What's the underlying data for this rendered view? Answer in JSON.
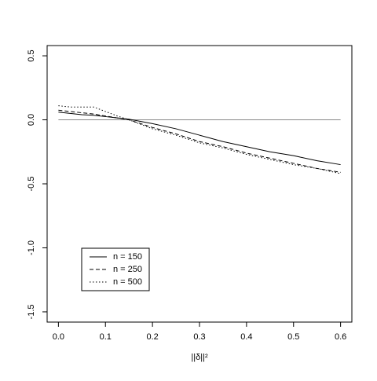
{
  "chart_data": {
    "type": "line",
    "x_label": "||δ||²",
    "x": [
      0,
      0.025,
      0.05,
      0.075,
      0.1,
      0.125,
      0.15,
      0.2,
      0.25,
      0.3,
      0.35,
      0.4,
      0.45,
      0.5,
      0.55,
      0.6
    ],
    "series": [
      {
        "name": "n = 150",
        "color": "#000000",
        "dash": "solid",
        "values": [
          0.06,
          0.05,
          0.04,
          0.035,
          0.025,
          0.015,
          0.005,
          -0.03,
          -0.07,
          -0.12,
          -0.17,
          -0.21,
          -0.25,
          -0.28,
          -0.32,
          -0.35
        ]
      },
      {
        "name": "n = 250",
        "color": "#000000",
        "dash": "dashed",
        "values": [
          0.075,
          0.065,
          0.055,
          0.045,
          0.03,
          0.015,
          0.0,
          -0.06,
          -0.11,
          -0.17,
          -0.21,
          -0.26,
          -0.3,
          -0.34,
          -0.38,
          -0.41
        ]
      },
      {
        "name": "n = 500",
        "color": "#000000",
        "dash": "dotted",
        "values": [
          0.11,
          0.1,
          0.1,
          0.1,
          0.065,
          0.03,
          0.0,
          -0.07,
          -0.12,
          -0.18,
          -0.22,
          -0.27,
          -0.31,
          -0.35,
          -0.38,
          -0.42
        ]
      }
    ],
    "hline": 0,
    "hline_color": "#888888",
    "xlim": [
      -0.024,
      0.624
    ],
    "xticks": [
      {
        "value": 0,
        "label": "0.0"
      },
      0.1,
      0.2,
      0.3,
      0.4,
      0.5,
      0.6
    ],
    "ylim": [
      -1.58,
      0.58
    ],
    "yticks": [
      -1.5,
      {
        "value": -1,
        "label": "-1.0"
      },
      -0.5,
      {
        "value": 0,
        "label": "0.0"
      },
      0.5
    ],
    "legend": "bottom-left"
  }
}
